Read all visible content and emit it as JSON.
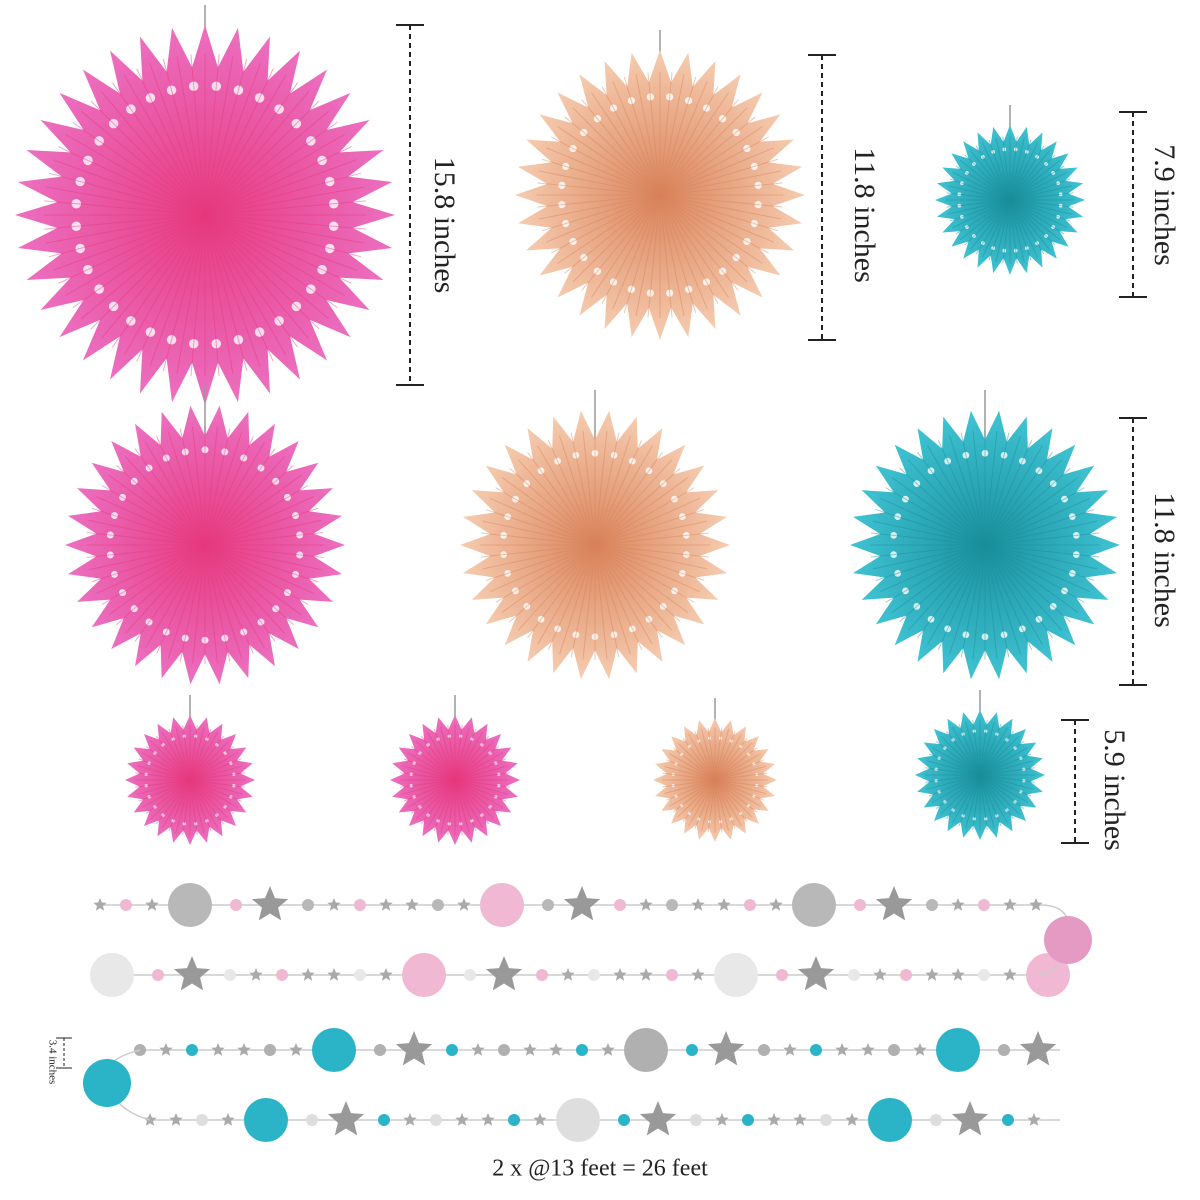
{
  "dimensions": [
    "15.8 inches",
    "11.8 inches",
    "7.9 inches",
    "11.8 inches",
    "5.9 inches",
    "3.4 inches"
  ],
  "caption": "2 x @13 feet = 26 feet"
}
